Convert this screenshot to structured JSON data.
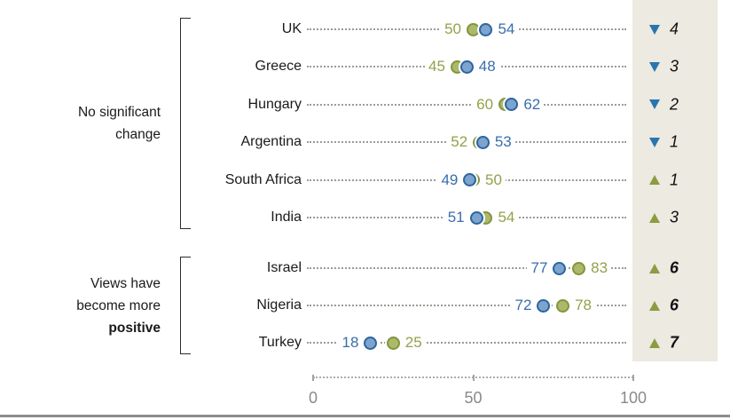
{
  "chart_data": {
    "type": "scatter",
    "variant": "paired-dot-plot",
    "title": "",
    "xlabel": "",
    "ylabel": "",
    "axis": {
      "min": 0,
      "max": 100,
      "ticks": [
        0,
        50,
        100
      ]
    },
    "groups": [
      {
        "lines": [
          {
            "text": "No significant",
            "bold": false
          },
          {
            "text": "change",
            "bold": false
          }
        ],
        "row_start": 0,
        "row_count": 6
      },
      {
        "lines": [
          {
            "text": "Views have",
            "bold": false
          },
          {
            "text": "become more",
            "bold": false
          },
          {
            "text": "positive",
            "bold": true
          }
        ],
        "row_start": 6,
        "row_count": 3
      }
    ],
    "rows": [
      {
        "country": "UK",
        "blue": 54,
        "green": 50,
        "change": 4,
        "direction": "down",
        "bold": false
      },
      {
        "country": "Greece",
        "blue": 48,
        "green": 45,
        "change": 3,
        "direction": "down",
        "bold": false
      },
      {
        "country": "Hungary",
        "blue": 62,
        "green": 60,
        "change": 2,
        "direction": "down",
        "bold": false
      },
      {
        "country": "Argentina",
        "blue": 53,
        "green": 52,
        "change": 1,
        "direction": "down",
        "bold": false
      },
      {
        "country": "South Africa",
        "blue": 49,
        "green": 50,
        "change": 1,
        "direction": "up",
        "bold": false
      },
      {
        "country": "India",
        "blue": 51,
        "green": 54,
        "change": 3,
        "direction": "up",
        "bold": false
      },
      {
        "country": "Israel",
        "blue": 77,
        "green": 83,
        "change": 6,
        "direction": "up",
        "bold": true
      },
      {
        "country": "Nigeria",
        "blue": 72,
        "green": 78,
        "change": 6,
        "direction": "up",
        "bold": true
      },
      {
        "country": "Turkey",
        "blue": 18,
        "green": 25,
        "change": 7,
        "direction": "up",
        "bold": true
      }
    ]
  },
  "colors": {
    "green_dot_fill": "#ABB96A",
    "green_dot_stroke": "#83953E",
    "green_text": "#94A14B",
    "blue_dot_fill": "#7CA4CE",
    "blue_dot_stroke": "#2C659E",
    "blue_text": "#3A6EA9",
    "up_triangle": "#8C9C42",
    "down_triangle": "#2A74B0",
    "leader_dots": "#9C9C94",
    "axis_text": "#8A8A8A",
    "change_column_bg": "#ECEAE1",
    "bottom_rule": "#8C8C8C",
    "label_text": "#1A1A1A"
  }
}
